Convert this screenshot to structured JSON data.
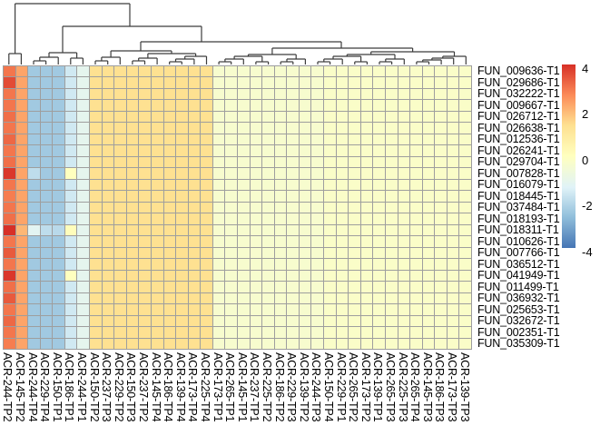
{
  "figure": {
    "background": "#ffffff",
    "grid_line_color": "#9e9e9e",
    "dendrogram_color": "#3c3c3c"
  },
  "chart_data": {
    "type": "heatmap",
    "title": "",
    "xlabel": "",
    "ylabel": "",
    "rows": [
      "FUN_009636-T1",
      "FUN_029686-T1",
      "FUN_032222-T1",
      "FUN_009667-T1",
      "FUN_026712-T1",
      "FUN_026638-T1",
      "FUN_012536-T1",
      "FUN_026241-T1",
      "FUN_029704-T1",
      "FUN_007828-T1",
      "FUN_016079-T1",
      "FUN_018445-T1",
      "FUN_037484-T1",
      "FUN_018193-T1",
      "FUN_018311-T1",
      "FUN_010626-T1",
      "FUN_007766-T1",
      "FUN_036512-T1",
      "FUN_041949-T1",
      "FUN_011499-T1",
      "FUN_036932-T1",
      "FUN_025653-T1",
      "FUN_032672-T1",
      "FUN_002351-T1",
      "FUN_035309-T1"
    ],
    "columns": [
      "ACR-244-TP2",
      "ACR-145-TP2",
      "ACR-244-TP4",
      "ACR-229-TP4",
      "ACR-150-TP1",
      "ACR-186-TP1",
      "ACR-244-TP1",
      "ACR-150-TP2",
      "ACR-237-TP3",
      "ACR-229-TP2",
      "ACR-150-TP3",
      "ACR-237-TP2",
      "ACR-145-TP4",
      "ACR-186-TP4",
      "ACR-139-TP4",
      "ACR-173-TP4",
      "ACR-225-TP4",
      "ACR-173-TP1",
      "ACR-265-TP1",
      "ACR-145-TP1",
      "ACR-237-TP1",
      "ACR-225-TP2",
      "ACR-186-TP2",
      "ACR-229-TP3",
      "ACR-139-TP2",
      "ACR-244-TP3",
      "ACR-150-TP4",
      "ACR-229-TP1",
      "ACR-265-TP2",
      "ACR-173-TP2",
      "ACR-139-TP1",
      "ACR-265-TP3",
      "ACR-225-TP3",
      "ACR-265-TP4",
      "ACR-145-TP3",
      "ACR-186-TP3",
      "ACR-173-TP3",
      "ACR-139-TP3"
    ],
    "value_range": [
      -4,
      4
    ],
    "palette": {
      "name": "RdYlBu-reversed",
      "domain": [
        -4,
        4
      ],
      "stops": [
        "#4575B4",
        "#91BFDB",
        "#E0F3F8",
        "#FFFFBF",
        "#FEE090",
        "#FC8D59",
        "#D73027"
      ]
    },
    "legend": {
      "tick_labels": [
        "4",
        "2",
        "0",
        "-2",
        "-4"
      ],
      "tick_values": [
        4,
        2,
        0,
        -2,
        -4
      ]
    },
    "cells": {
      "base_by_column": [
        3.0,
        2.3,
        -2.4,
        -2.4,
        -2.4,
        -1.6,
        -1.1,
        1.3,
        1.3,
        1.3,
        1.3,
        1.3,
        1.3,
        1.3,
        1.3,
        1.3,
        1.3,
        -0.35,
        -0.35,
        -0.35,
        -0.35,
        -0.35,
        -0.35,
        -0.35,
        -0.35,
        -0.35,
        -0.2,
        -0.2,
        -0.2,
        -0.2,
        -0.2,
        -0.2,
        -0.2,
        -0.2,
        -0.2,
        -0.2,
        -0.2,
        -0.2
      ],
      "overrides": [
        [
          2,
          1,
          3.6
        ],
        [
          5,
          1,
          3.1
        ],
        [
          7,
          1,
          3.2
        ],
        [
          9,
          1,
          3.1
        ],
        [
          10,
          1,
          3.9
        ],
        [
          12,
          1,
          2.9
        ],
        [
          14,
          1,
          3.1
        ],
        [
          15,
          1,
          4.0
        ],
        [
          17,
          1,
          3.4
        ],
        [
          19,
          1,
          3.9
        ],
        [
          20,
          1,
          3.1
        ],
        [
          21,
          1,
          3.4
        ],
        [
          23,
          1,
          3.2
        ],
        [
          25,
          1,
          2.9
        ],
        [
          15,
          2,
          2.0
        ],
        [
          10,
          3,
          -1.9
        ],
        [
          15,
          3,
          -1.2
        ],
        [
          15,
          4,
          -1.9
        ],
        [
          15,
          5,
          -2.0
        ],
        [
          10,
          6,
          0.0
        ],
        [
          15,
          6,
          0.1
        ],
        [
          19,
          6,
          0.0
        ]
      ]
    },
    "dendrogram": {
      "segments": [
        [
          9.8,
          71,
          9.8,
          59
        ],
        [
          23.4,
          71,
          23.4,
          59
        ],
        [
          9.8,
          59,
          23.4,
          59
        ],
        [
          16.6,
          59,
          16.6,
          4
        ],
        [
          16.6,
          4,
          143,
          4
        ],
        [
          143,
          4,
          143,
          29
        ],
        [
          69,
          29,
          222,
          29
        ],
        [
          222,
          29,
          222,
          46
        ],
        [
          69,
          29,
          69,
          58
        ],
        [
          54,
          58,
          84.6,
          58
        ],
        [
          54,
          58,
          54,
          63
        ],
        [
          43.8,
          63,
          64.2,
          63
        ],
        [
          43.8,
          63,
          43.8,
          67
        ],
        [
          37,
          67,
          50.6,
          67
        ],
        [
          37,
          67,
          37,
          71
        ],
        [
          50.6,
          67,
          50.6,
          71
        ],
        [
          64.2,
          63,
          64.2,
          71
        ],
        [
          84.6,
          58,
          84.6,
          64
        ],
        [
          77.8,
          64,
          91.4,
          64
        ],
        [
          77.8,
          64,
          77.8,
          71
        ],
        [
          91.4,
          64,
          91.4,
          71
        ],
        [
          155,
          46,
          376,
          46
        ],
        [
          155,
          46,
          155,
          56
        ],
        [
          122.1,
          56,
          189,
          56
        ],
        [
          122.1,
          56,
          122.1,
          63
        ],
        [
          111.9,
          63,
          132.3,
          63
        ],
        [
          111.9,
          63,
          111.9,
          67
        ],
        [
          105,
          67,
          118.7,
          67
        ],
        [
          105,
          67,
          105,
          71
        ],
        [
          118.7,
          67,
          118.7,
          71
        ],
        [
          132.3,
          63,
          132.3,
          71
        ],
        [
          189,
          56,
          189,
          59
        ],
        [
          162.9,
          59,
          215.6,
          59
        ],
        [
          162.9,
          59,
          162.9,
          64
        ],
        [
          152.7,
          64,
          173.1,
          64
        ],
        [
          152.7,
          64,
          152.7,
          67
        ],
        [
          145.9,
          67,
          159.5,
          67
        ],
        [
          145.9,
          67,
          145.9,
          71
        ],
        [
          159.5,
          67,
          159.5,
          71
        ],
        [
          173.1,
          64,
          173.1,
          71
        ],
        [
          215.6,
          59,
          215.6,
          62
        ],
        [
          203.7,
          62,
          227.5,
          62
        ],
        [
          203.7,
          62,
          203.7,
          65
        ],
        [
          193.5,
          65,
          213.9,
          65
        ],
        [
          193.5,
          65,
          193.5,
          68
        ],
        [
          186.7,
          68,
          200.3,
          68
        ],
        [
          186.7,
          68,
          186.7,
          71
        ],
        [
          200.3,
          68,
          200.3,
          71
        ],
        [
          213.9,
          65,
          213.9,
          71
        ],
        [
          227.5,
          62,
          227.5,
          71
        ],
        [
          376,
          46,
          376,
          53
        ],
        [
          299.9,
          53,
          454.6,
          53
        ],
        [
          299.9,
          53,
          299.9,
          60
        ],
        [
          273.5,
          60,
          326.2,
          60
        ],
        [
          273.5,
          60,
          273.5,
          62
        ],
        [
          258.1,
          62,
          288.8,
          62
        ],
        [
          258.1,
          62,
          258.1,
          65
        ],
        [
          247.9,
          65,
          268.3,
          65
        ],
        [
          247.9,
          65,
          247.9,
          68
        ],
        [
          241.1,
          68,
          254.7,
          68
        ],
        [
          241.1,
          68,
          241.1,
          71
        ],
        [
          254.7,
          68,
          254.7,
          71
        ],
        [
          268.3,
          65,
          268.3,
          71
        ],
        [
          288.8,
          62,
          288.8,
          68
        ],
        [
          281.9,
          68,
          295.6,
          68
        ],
        [
          281.9,
          68,
          281.9,
          71
        ],
        [
          295.6,
          68,
          295.6,
          71
        ],
        [
          326.2,
          60,
          326.2,
          65
        ],
        [
          316,
          65,
          336.4,
          65
        ],
        [
          316,
          65,
          316,
          68
        ],
        [
          309.2,
          68,
          322.8,
          68
        ],
        [
          309.2,
          68,
          309.2,
          71
        ],
        [
          322.8,
          68,
          322.8,
          71
        ],
        [
          336.4,
          65,
          336.4,
          71
        ],
        [
          454.6,
          53,
          454.6,
          57
        ],
        [
          408.7,
          57,
          500.5,
          57
        ],
        [
          408.7,
          57,
          408.7,
          60
        ],
        [
          382.3,
          60,
          435,
          60
        ],
        [
          382.3,
          60,
          382.3,
          62
        ],
        [
          367,
          62,
          397.6,
          62
        ],
        [
          367,
          62,
          367,
          65
        ],
        [
          356.8,
          65,
          377.2,
          65
        ],
        [
          356.8,
          65,
          356.8,
          68
        ],
        [
          350,
          68,
          363.6,
          68
        ],
        [
          350,
          68,
          350,
          71
        ],
        [
          363.6,
          68,
          363.6,
          71
        ],
        [
          377.2,
          65,
          377.2,
          71
        ],
        [
          397.6,
          62,
          397.6,
          68
        ],
        [
          390.8,
          68,
          404.4,
          68
        ],
        [
          390.8,
          68,
          390.8,
          71
        ],
        [
          404.4,
          68,
          404.4,
          71
        ],
        [
          435,
          60,
          435,
          65
        ],
        [
          424.8,
          65,
          445.3,
          65
        ],
        [
          424.8,
          65,
          424.8,
          68
        ],
        [
          418,
          68,
          431.6,
          68
        ],
        [
          418,
          68,
          418,
          71
        ],
        [
          431.6,
          68,
          431.6,
          71
        ],
        [
          445.3,
          65,
          445.3,
          71
        ],
        [
          500.5,
          57,
          500.5,
          62
        ],
        [
          487.8,
          62,
          513.3,
          62
        ],
        [
          487.8,
          62,
          487.8,
          64
        ],
        [
          475.9,
          64,
          499.7,
          64
        ],
        [
          475.9,
          64,
          475.9,
          66
        ],
        [
          465.7,
          66,
          486.1,
          66
        ],
        [
          465.7,
          66,
          465.7,
          68
        ],
        [
          458.9,
          68,
          472.5,
          68
        ],
        [
          458.9,
          68,
          458.9,
          71
        ],
        [
          472.5,
          68,
          472.5,
          71
        ],
        [
          486.1,
          66,
          486.1,
          71
        ],
        [
          499.7,
          64,
          499.7,
          71
        ],
        [
          513.3,
          62,
          513.3,
          71
        ]
      ]
    }
  }
}
